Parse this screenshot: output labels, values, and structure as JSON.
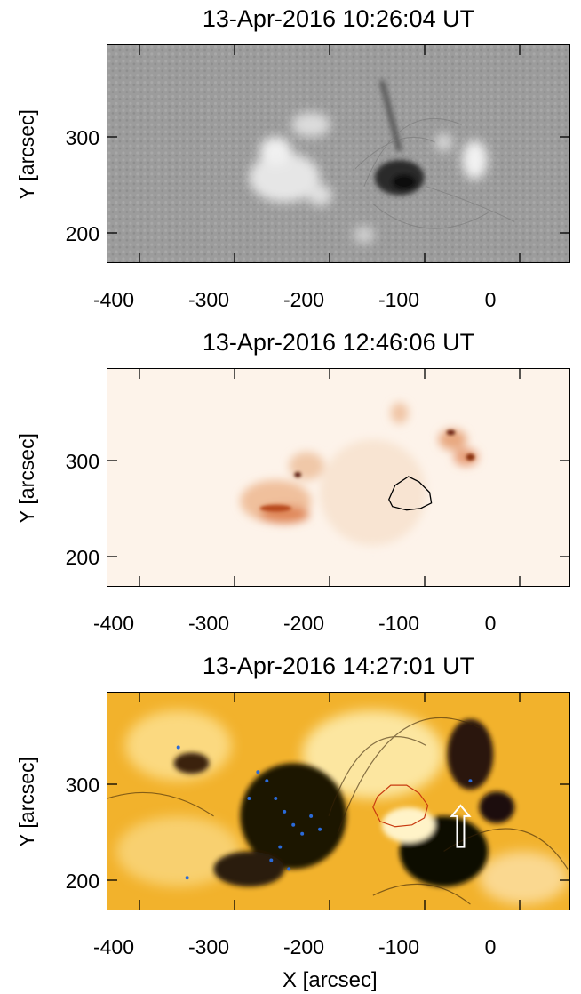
{
  "panels": [
    {
      "title": "13-Apr-2016 10:26:04 UT",
      "ylabel": "Y [arcsec]"
    },
    {
      "title": "13-Apr-2016 12:46:06 UT",
      "ylabel": "Y [arcsec]"
    },
    {
      "title": "13-Apr-2016 14:27:01 UT",
      "ylabel": "Y [arcsec]"
    }
  ],
  "x_tick_labels": [
    "-400",
    "-300",
    "-200",
    "-100",
    "0"
  ],
  "y_tick_labels": [
    "300",
    "200"
  ],
  "xlabel": "X [arcsec]",
  "colors": {
    "hmi_gray": "#9a9a9a",
    "aia_orange": "#c85a1e",
    "aia_gold": "#f0b020",
    "contour_blue": "#2a6ad8",
    "contour_red": "#c83a10"
  }
}
